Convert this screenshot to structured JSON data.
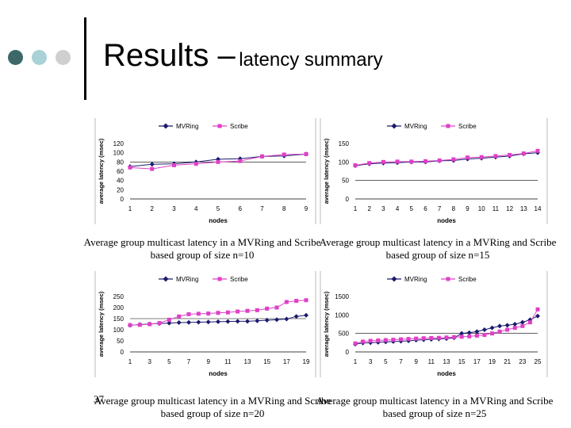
{
  "slide": {
    "title_main": "Results –",
    "title_sub": "latency summary",
    "slide_number": "37",
    "colors": {
      "dot1": "#3d6868",
      "dot2": "#a9d1d6",
      "dot3": "#cfcfcf",
      "mvring": "#1a1a6e",
      "scribe": "#e040c8"
    }
  },
  "captions": [
    "Average group multicast latency in a MVRing and Scribe based group of size n=10",
    "Average group multicast latency in a MVRing and Scribe based group of size n=15",
    "Average group multicast latency in a MVRing and Scribe based group of size n=20",
    "Average group multicast latency in a MVRing and Scribe based group of size n=25"
  ],
  "chart_data": [
    {
      "type": "line",
      "x": [
        1,
        2,
        3,
        4,
        5,
        6,
        7,
        8,
        9
      ],
      "xticks": [
        "1",
        "2",
        "3",
        "4",
        "5",
        "6",
        "7",
        "8",
        "9"
      ],
      "ylabel": "average latency (msec)",
      "xlabel": "nodes",
      "ylim": [
        0,
        120
      ],
      "yticks": [
        0,
        20,
        40,
        60,
        80,
        100,
        120
      ],
      "legend": "top",
      "series": [
        {
          "name": "MVRing",
          "values": [
            70,
            75,
            76,
            80,
            86,
            87,
            92,
            93,
            97
          ]
        },
        {
          "name": "Scribe",
          "values": [
            68,
            65,
            73,
            76,
            80,
            82,
            92,
            96,
            97
          ]
        }
      ]
    },
    {
      "type": "line",
      "x": [
        1,
        2,
        3,
        4,
        5,
        6,
        7,
        8,
        9,
        10,
        11,
        12,
        13,
        14
      ],
      "xticks": [
        "1",
        "2",
        "3",
        "4",
        "5",
        "6",
        "7",
        "8",
        "9",
        "10",
        "11",
        "12",
        "13",
        "14"
      ],
      "ylabel": "average latency (msec)",
      "xlabel": "nodes",
      "ylim": [
        0,
        150
      ],
      "yticks": [
        0,
        50,
        100,
        150
      ],
      "legend": "top",
      "series": [
        {
          "name": "MVRing",
          "values": [
            90,
            95,
            97,
            98,
            100,
            100,
            103,
            104,
            108,
            110,
            113,
            116,
            122,
            125
          ]
        },
        {
          "name": "Scribe",
          "values": [
            91,
            97,
            100,
            101,
            101,
            102,
            104,
            107,
            112,
            113,
            116,
            119,
            123,
            130
          ]
        }
      ]
    },
    {
      "type": "line",
      "x": [
        1,
        2,
        3,
        4,
        5,
        6,
        7,
        8,
        9,
        10,
        11,
        12,
        13,
        14,
        15,
        16,
        17,
        18,
        19
      ],
      "xticks": [
        "1",
        "3",
        "5",
        "7",
        "9",
        "11",
        "13",
        "15",
        "17",
        "19"
      ],
      "ylabel": "average latency (msec)",
      "xlabel": "nodes",
      "ylim": [
        0,
        250
      ],
      "yticks": [
        0,
        50,
        100,
        150,
        200,
        250
      ],
      "legend": "top",
      "series": [
        {
          "name": "MVRing",
          "values": [
            120,
            123,
            126,
            128,
            130,
            132,
            133,
            134,
            135,
            136,
            137,
            138,
            138,
            140,
            143,
            145,
            148,
            160,
            165
          ]
        },
        {
          "name": "Scribe",
          "values": [
            121,
            122,
            125,
            130,
            145,
            160,
            170,
            172,
            173,
            176,
            178,
            182,
            185,
            188,
            195,
            200,
            225,
            230,
            233
          ]
        }
      ]
    },
    {
      "type": "line",
      "x": [
        1,
        2,
        3,
        4,
        5,
        6,
        7,
        8,
        9,
        10,
        11,
        12,
        13,
        14,
        15,
        16,
        17,
        18,
        19,
        20,
        21,
        22,
        23,
        24,
        25
      ],
      "xticks": [
        "1",
        "3",
        "5",
        "7",
        "9",
        "11",
        "13",
        "15",
        "17",
        "19",
        "21",
        "23",
        "25"
      ],
      "ylabel": "average latency (msec)",
      "xlabel": "nodes",
      "ylim": [
        0,
        1500
      ],
      "yticks": [
        0,
        500,
        1000,
        1500
      ],
      "legend": "top",
      "series": [
        {
          "name": "MVRing",
          "values": [
            210,
            240,
            250,
            260,
            270,
            280,
            290,
            300,
            320,
            330,
            340,
            350,
            360,
            380,
            500,
            520,
            550,
            600,
            650,
            700,
            720,
            750,
            800,
            870,
            970
          ]
        },
        {
          "name": "Scribe",
          "values": [
            230,
            280,
            300,
            310,
            320,
            330,
            340,
            350,
            360,
            370,
            375,
            380,
            390,
            400,
            410,
            420,
            440,
            460,
            500,
            550,
            600,
            650,
            700,
            800,
            1150
          ]
        }
      ]
    }
  ]
}
